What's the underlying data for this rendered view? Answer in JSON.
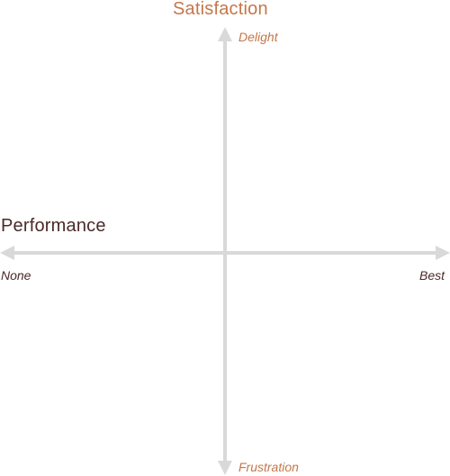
{
  "diagram": {
    "y_axis": {
      "title": "Satisfaction",
      "top_label": "Delight",
      "bottom_label": "Frustration"
    },
    "x_axis": {
      "title": "Performance",
      "left_label": "None",
      "right_label": "Best"
    }
  },
  "colors": {
    "accent_orange": "#c4774a",
    "dark_maroon": "#4a2a2a",
    "axis_gray": "#d9d9d9"
  }
}
